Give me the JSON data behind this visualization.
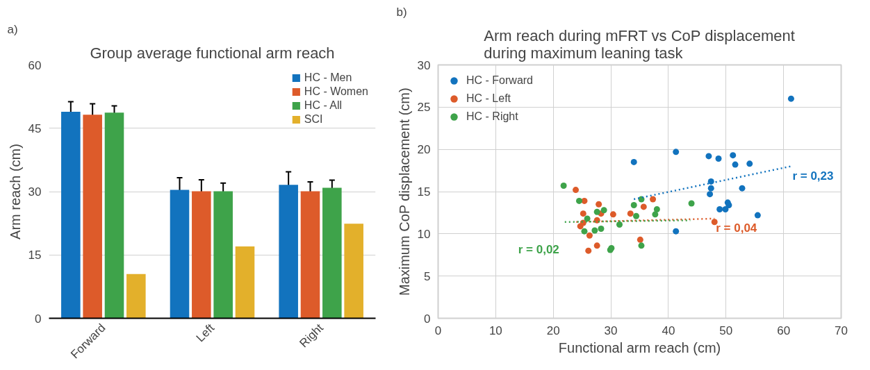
{
  "chart_data": [
    {
      "type": "bar",
      "title": "Group average functional arm reach",
      "ylabel": "Arm reach (cm)",
      "annotations": [
        "a)"
      ],
      "categories": [
        "Forward",
        "Left",
        "Right"
      ],
      "series": [
        {
          "name": "HC - Men",
          "color": "#1273be",
          "values": [
            48.9,
            30.4,
            31.6
          ],
          "errors": [
            2.4,
            2.9,
            3.1
          ]
        },
        {
          "name": "HC - Women",
          "color": "#dd5b2a",
          "values": [
            48.2,
            30.1,
            30.1
          ],
          "errors": [
            2.6,
            2.7,
            2.2
          ]
        },
        {
          "name": "HC - All",
          "color": "#3ea34a",
          "values": [
            48.7,
            30.1,
            30.9
          ],
          "errors": [
            1.6,
            1.9,
            1.8
          ]
        },
        {
          "name": "SCI",
          "color": "#e3b02b",
          "values": [
            10.5,
            17.0,
            22.4
          ]
        }
      ],
      "ylim": [
        0,
        60
      ],
      "yticks": [
        0,
        15,
        30,
        45,
        60
      ],
      "grid": "y",
      "legend": "top right"
    },
    {
      "type": "scatter",
      "title": "Arm reach during mFRT vs CoP displacement\nduring maximum leaning task",
      "xlabel": "Functional arm reach (cm)",
      "ylabel": "Maximum CoP displacement (cm)",
      "annotations": [
        "b)"
      ],
      "series": [
        {
          "name": "HC - Forward",
          "color": "#1273be",
          "marker": "circle",
          "x": [
            34.0,
            41.3,
            41.3,
            47.0,
            48.7,
            51.2,
            51.6,
            54.1,
            47.4,
            47.4,
            47.2,
            52.8,
            50.3,
            50.5,
            48.9,
            49.9,
            55.5,
            61.3
          ],
          "values": [
            18.5,
            19.7,
            10.3,
            19.2,
            18.9,
            19.3,
            18.2,
            18.3,
            16.2,
            15.4,
            14.7,
            15.4,
            13.7,
            13.4,
            12.9,
            12.9,
            12.2,
            26.0
          ]
        },
        {
          "name": "HC - Left",
          "color": "#dd5b2a",
          "marker": "circle",
          "x": [
            23.9,
            25.4,
            27.9,
            25.2,
            28.3,
            27.6,
            30.4,
            33.4,
            35.7,
            37.3,
            24.7,
            25.2,
            26.3,
            27.6,
            26.1,
            35.1,
            48.0
          ],
          "values": [
            15.2,
            13.9,
            13.5,
            12.4,
            12.4,
            11.6,
            12.3,
            12.4,
            13.2,
            14.1,
            10.9,
            11.3,
            9.8,
            8.6,
            8.0,
            9.3,
            11.4
          ]
        },
        {
          "name": "HC - Right",
          "color": "#3ea34a",
          "marker": "circle",
          "x": [
            21.8,
            24.5,
            25.9,
            27.6,
            28.8,
            25.4,
            27.2,
            28.3,
            31.5,
            29.9,
            30.1,
            34.0,
            35.3,
            34.4,
            38.0,
            37.7,
            35.3,
            44.0
          ],
          "values": [
            15.7,
            13.9,
            11.8,
            12.6,
            12.8,
            10.3,
            10.4,
            10.6,
            11.1,
            8.1,
            8.3,
            13.4,
            14.1,
            12.1,
            12.9,
            12.3,
            8.6,
            13.6
          ]
        },
        {
          "type": "line",
          "name": "r = 0,23",
          "line_style": "dotted",
          "color": "#1273be",
          "x": [
            34.0,
            61.3
          ],
          "values": [
            14.1,
            18.0
          ]
        },
        {
          "type": "line",
          "name": "r = 0,04",
          "line_style": "dotted",
          "color": "#dd5b2a",
          "x": [
            24.0,
            48.0
          ],
          "values": [
            11.4,
            11.8
          ]
        },
        {
          "type": "line",
          "name": "r = 0,02",
          "line_style": "dotted",
          "color": "#3ea34a",
          "x": [
            22.0,
            43.8
          ],
          "values": [
            11.4,
            11.6
          ]
        }
      ],
      "xlim": [
        0,
        70
      ],
      "xticks": [
        0,
        10,
        20,
        30,
        40,
        50,
        60,
        70
      ],
      "ylim": [
        0,
        30
      ],
      "yticks": [
        0,
        5,
        10,
        15,
        20,
        25,
        30
      ],
      "grid": true,
      "legend": "top left"
    }
  ]
}
